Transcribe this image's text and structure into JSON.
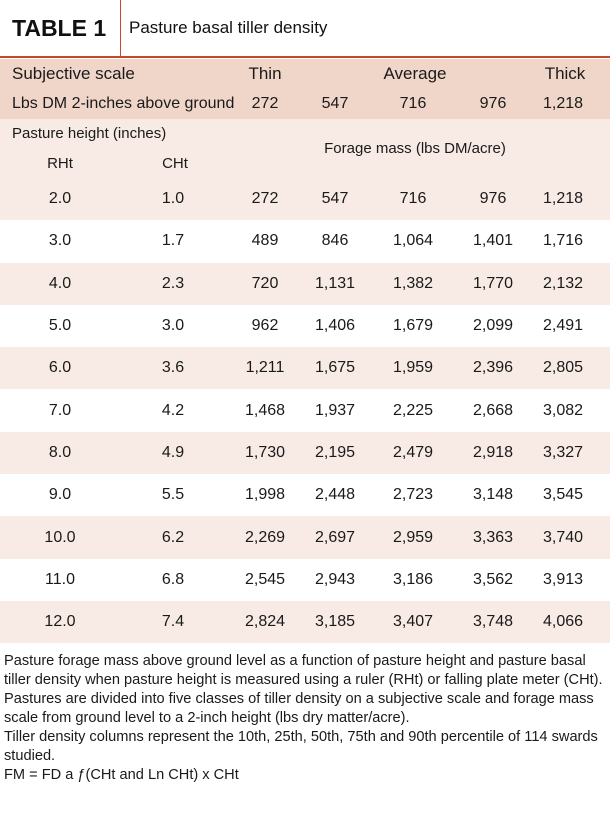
{
  "title": {
    "label": "TABLE 1",
    "text": "Pasture basal tiller density"
  },
  "header": {
    "subjective_label": "Subjective scale",
    "thin": "Thin",
    "average": "Average",
    "thick": "Thick",
    "lbs_label": "Lbs DM 2-inches above ground",
    "lbs_values": [
      "272",
      "547",
      "716",
      "976",
      "1,218"
    ],
    "height_label": "Pasture height (inches)",
    "rht": "RHt",
    "cht": "CHt",
    "forage_label": "Forage mass (lbs DM/acre)"
  },
  "rows": [
    [
      "2.0",
      "1.0",
      "272",
      "547",
      "716",
      "976",
      "1,218"
    ],
    [
      "3.0",
      "1.7",
      "489",
      "846",
      "1,064",
      "1,401",
      "1,716"
    ],
    [
      "4.0",
      "2.3",
      "720",
      "1,131",
      "1,382",
      "1,770",
      "2,132"
    ],
    [
      "5.0",
      "3.0",
      "962",
      "1,406",
      "1,679",
      "2,099",
      "2,491"
    ],
    [
      "6.0",
      "3.6",
      "1,211",
      "1,675",
      "1,959",
      "2,396",
      "2,805"
    ],
    [
      "7.0",
      "4.2",
      "1,468",
      "1,937",
      "2,225",
      "2,668",
      "3,082"
    ],
    [
      "8.0",
      "4.9",
      "1,730",
      "2,195",
      "2,479",
      "2,918",
      "3,327"
    ],
    [
      "9.0",
      "5.5",
      "1,998",
      "2,448",
      "2,723",
      "3,148",
      "3,545"
    ],
    [
      "10.0",
      "6.2",
      "2,269",
      "2,697",
      "2,959",
      "3,363",
      "3,740"
    ],
    [
      "11.0",
      "6.8",
      "2,545",
      "2,943",
      "3,186",
      "3,562",
      "3,913"
    ],
    [
      "12.0",
      "7.4",
      "2,824",
      "3,185",
      "3,407",
      "3,748",
      "4,066"
    ]
  ],
  "notes": {
    "line1": "Pasture forage mass above ground level as a function of pasture height and pasture basal tiller density when pasture height is measured using a ruler (RHt) or falling plate meter (CHt). Pastures are divided into five classes of tiller density on a subjective scale and forage mass scale from ground level to a 2-inch height (lbs dry matter/acre).",
    "line2": "Tiller density columns represent the 10th, 25th, 50th, 75th and 90th percentile of 114 swards studied.",
    "line3": "FM = FD a ƒ(CHt and Ln CHt) x CHt"
  },
  "colors": {
    "accent": "#c8452f",
    "header_dark": "#f0d5c9",
    "band_light": "#f8eae4"
  }
}
